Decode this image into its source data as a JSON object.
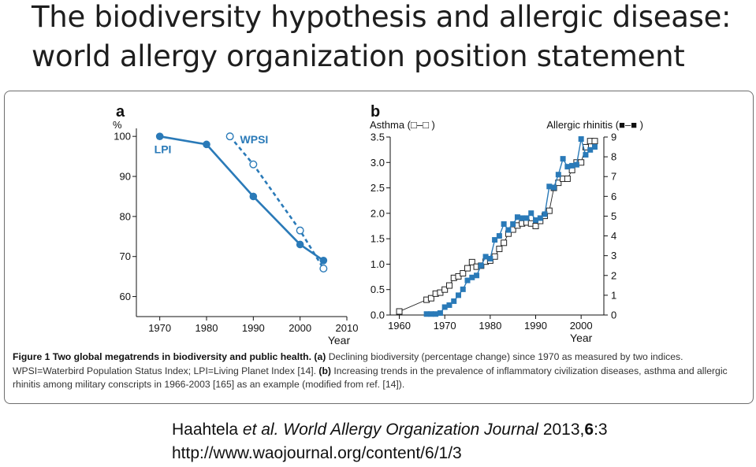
{
  "slide": {
    "title_line1": "The biodiversity hypothesis and allergic disease:",
    "title_line2": "world allergy organization position statement"
  },
  "figure": {
    "caption_bold": "Figure 1 Two global megatrends in biodiversity and public health.",
    "caption_a_label": "(a)",
    "caption_a_text": "Declining biodiversity (percentage change) since 1970 as measured by two indices. WPSI=Waterbird Population Status Index; LPI=Living Planet Index [14].",
    "caption_b_label": "(b)",
    "caption_b_text": "Increasing trends in the prevalence of inflammatory civilization diseases, asthma and allergic rhinitis among military conscripts in 1966-2003 [165] as an example (modified from ref. [14])."
  },
  "citation": {
    "authors": "Haahtela",
    "etal": "et al.",
    "journal": "World Allergy Organization Journal",
    "year": "2013,",
    "volume": "6",
    "issue": ":3",
    "url": "http://www.waojournal.org/content/6/1/3"
  },
  "colors": {
    "series": "#2a7ab8",
    "axis": "#111111",
    "box_border": "#6e6e6e"
  },
  "chart_data": [
    {
      "type": "line",
      "panel_label": "a",
      "ylabel": "%",
      "xlabel": "Year",
      "xlim": [
        1965,
        2010
      ],
      "ylim": [
        55,
        102
      ],
      "x_ticks": [
        1970,
        1980,
        1990,
        2000,
        2010
      ],
      "y_ticks": [
        60,
        70,
        80,
        90,
        100
      ],
      "series": [
        {
          "name": "LPI",
          "style": "solid-filled",
          "x": [
            1970,
            1980,
            1990,
            2000,
            2005
          ],
          "values": [
            100,
            98,
            85,
            73,
            69
          ]
        },
        {
          "name": "WPSI",
          "style": "dashed-open",
          "x": [
            1985,
            1990,
            2000,
            2005
          ],
          "values": [
            100,
            93,
            76.5,
            67
          ]
        }
      ]
    },
    {
      "type": "line",
      "panel_label": "b",
      "xlabel": "Year",
      "xlim": [
        1958,
        2005
      ],
      "x_ticks": [
        1960,
        1970,
        1980,
        1990,
        2000
      ],
      "left_axis": {
        "label": "Asthma (□–□ )",
        "ylim": [
          0,
          3.5
        ],
        "ticks": [
          "0.0",
          "0.5",
          "1.0",
          "1.5",
          "2.0",
          "2.5",
          "3.0",
          "3.5"
        ]
      },
      "right_axis": {
        "label": "Allergic rhinitis (■–■ )",
        "ylim": [
          0,
          9
        ],
        "ticks": [
          "0",
          "1",
          "2",
          "3",
          "4",
          "5",
          "6",
          "7",
          "8",
          "9"
        ]
      },
      "series": [
        {
          "axis": "left",
          "style": "open-square",
          "x": [
            1960,
            1966,
            1967,
            1968,
            1969,
            1970,
            1971,
            1972,
            1973,
            1974,
            1975,
            1976,
            1977,
            1978,
            1979,
            1980,
            1981,
            1982,
            1983,
            1984,
            1985,
            1986,
            1987,
            1988,
            1989,
            1990,
            1991,
            1992,
            1993,
            1994,
            1995,
            1996,
            1997,
            1998,
            1999,
            2000,
            2001,
            2002,
            2003
          ],
          "values": [
            0.07,
            0.3,
            0.33,
            0.42,
            0.44,
            0.5,
            0.58,
            0.73,
            0.76,
            0.82,
            0.92,
            1.04,
            0.95,
            0.97,
            1.05,
            1.07,
            1.15,
            1.3,
            1.42,
            1.6,
            1.68,
            1.76,
            1.8,
            1.82,
            1.8,
            1.75,
            1.85,
            1.95,
            2.05,
            2.5,
            2.6,
            2.68,
            2.68,
            2.85,
            3.0,
            3.0,
            3.3,
            3.42,
            3.42
          ]
        },
        {
          "axis": "right",
          "style": "filled-square",
          "x": [
            1966,
            1967,
            1968,
            1969,
            1970,
            1971,
            1972,
            1973,
            1974,
            1975,
            1976,
            1977,
            1978,
            1979,
            1980,
            1981,
            1982,
            1983,
            1984,
            1985,
            1986,
            1987,
            1988,
            1989,
            1990,
            1991,
            1992,
            1993,
            1994,
            1995,
            1996,
            1997,
            1998,
            1999,
            2000,
            2001,
            2002,
            2003
          ],
          "values": [
            0.05,
            0.05,
            0.05,
            0.1,
            0.4,
            0.5,
            0.7,
            1.0,
            1.3,
            1.75,
            1.9,
            2.0,
            2.5,
            2.95,
            2.85,
            3.8,
            4.0,
            4.6,
            4.3,
            4.6,
            4.95,
            4.9,
            4.9,
            5.15,
            4.8,
            4.9,
            5.1,
            6.5,
            6.45,
            7.1,
            7.9,
            7.5,
            7.55,
            7.6,
            8.9,
            8.1,
            8.35,
            8.5
          ]
        }
      ]
    }
  ]
}
